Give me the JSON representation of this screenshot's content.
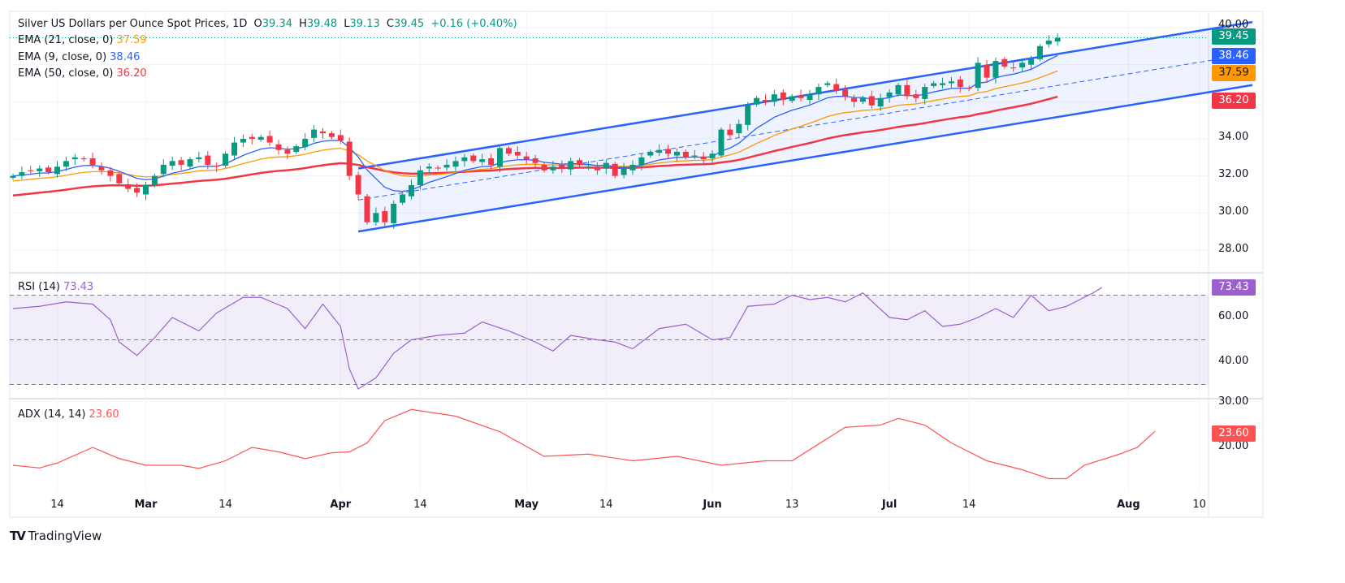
{
  "header": {
    "title": "Silver US Dollars per Ounce Spot Prices, 1D",
    "o_label": "O",
    "o": "39.34",
    "h_label": "H",
    "h": "39.48",
    "l_label": "L",
    "l": "39.13",
    "c_label": "C",
    "c": "39.45",
    "change": "+0.16 (+0.40%)"
  },
  "legends": {
    "ema21": {
      "label": "EMA (21, close, 0)",
      "value": "37.59"
    },
    "ema9": {
      "label": "EMA (9, close, 0)",
      "value": "38.46"
    },
    "ema50": {
      "label": "EMA (50, close, 0)",
      "value": "36.20"
    },
    "rsi": {
      "label": "RSI (14)",
      "value": "73.43"
    },
    "adx": {
      "label": "ADX (14, 14)",
      "value": "23.60"
    }
  },
  "colors": {
    "up": "#089981",
    "down": "#f23645",
    "ema9": "#2962ff",
    "ema21": "#ff9800",
    "ema50": "#f23645",
    "rsi": "#9c5fd0",
    "adx": "#ff5252",
    "channel": "#2962ff"
  },
  "branding": "TradingView",
  "chart_data": [
    {
      "type": "candlestick",
      "title": "Silver US Dollars per Ounce Spot Prices, 1D",
      "ylim": [
        27,
        40.6
      ],
      "yticks": [
        "40.00",
        "34.00",
        "32.00",
        "30.00",
        "28.00"
      ],
      "last_price_tags": [
        "39.45",
        "38.46",
        "37.59",
        "36.20"
      ],
      "closes": [
        32.0,
        32.2,
        32.3,
        32.4,
        32.2,
        32.5,
        32.8,
        33.0,
        32.9,
        32.6,
        32.3,
        32.0,
        31.6,
        31.3,
        31.1,
        31.5,
        32.0,
        32.6,
        32.8,
        32.6,
        32.9,
        33.0,
        32.6,
        32.5,
        33.2,
        33.8,
        34.0,
        34.0,
        34.1,
        33.8,
        33.4,
        33.2,
        33.6,
        34.0,
        34.5,
        34.3,
        34.1,
        33.9,
        32.0,
        31.0,
        29.5,
        30.0,
        29.5,
        30.5,
        31.0,
        31.5,
        32.3,
        32.5,
        32.4,
        32.6,
        32.8,
        33.0,
        32.8,
        32.9,
        32.6,
        33.5,
        33.2,
        33.1,
        32.9,
        32.7,
        32.3,
        32.5,
        32.4,
        32.8,
        32.6,
        32.5,
        32.3,
        32.7,
        32.0,
        32.4,
        32.6,
        33.0,
        33.3,
        33.4,
        33.2,
        33.3,
        33.0,
        33.1,
        32.9,
        33.2,
        34.5,
        34.2,
        34.8,
        35.8,
        36.2,
        36.0,
        36.4,
        36.1,
        36.3,
        36.2,
        36.4,
        36.8,
        37.0,
        36.6,
        36.3,
        36.0,
        36.2,
        35.8,
        36.2,
        36.5,
        36.9,
        36.3,
        36.2,
        36.8,
        37.0,
        37.0,
        37.1,
        36.8,
        36.7,
        38.1,
        37.3,
        38.2,
        37.9,
        37.8,
        38.1,
        38.3,
        39.0,
        39.3,
        39.45
      ],
      "channel": {
        "start_bar": 39,
        "end_bar": 140,
        "upper": [
          32.4,
          40.3
        ],
        "lower": [
          29.0,
          36.9
        ]
      }
    },
    {
      "type": "line",
      "title": "RSI (14)",
      "ylim": [
        25,
        78
      ],
      "yticks": [
        "60.00",
        "40.00"
      ],
      "bands": [
        30,
        50,
        70
      ],
      "points": [
        [
          0,
          64
        ],
        [
          3,
          65
        ],
        [
          6,
          67
        ],
        [
          9,
          66
        ],
        [
          11,
          59
        ],
        [
          12,
          49
        ],
        [
          14,
          43
        ],
        [
          16,
          51
        ],
        [
          18,
          60
        ],
        [
          21,
          54
        ],
        [
          23,
          62
        ],
        [
          26,
          69
        ],
        [
          28,
          69
        ],
        [
          31,
          64
        ],
        [
          33,
          55
        ],
        [
          35,
          66
        ],
        [
          37,
          56
        ],
        [
          38,
          37
        ],
        [
          39,
          28
        ],
        [
          41,
          33
        ],
        [
          43,
          44
        ],
        [
          45,
          50
        ],
        [
          48,
          52
        ],
        [
          51,
          53
        ],
        [
          53,
          58
        ],
        [
          56,
          54
        ],
        [
          59,
          49
        ],
        [
          61,
          45
        ],
        [
          63,
          52
        ],
        [
          66,
          50
        ],
        [
          68,
          49
        ],
        [
          70,
          46
        ],
        [
          73,
          55
        ],
        [
          76,
          57
        ],
        [
          79,
          50
        ],
        [
          81,
          51
        ],
        [
          83,
          65
        ],
        [
          86,
          66
        ],
        [
          88,
          70
        ],
        [
          90,
          68
        ],
        [
          92,
          69
        ],
        [
          94,
          67
        ],
        [
          96,
          71
        ],
        [
          99,
          60
        ],
        [
          101,
          59
        ],
        [
          103,
          63
        ],
        [
          105,
          56
        ],
        [
          107,
          57
        ],
        [
          109,
          60
        ],
        [
          111,
          64
        ],
        [
          113,
          60
        ],
        [
          115,
          70
        ],
        [
          117,
          63
        ],
        [
          119,
          65
        ],
        [
          120,
          67
        ],
        [
          122,
          71
        ],
        [
          123,
          73.43
        ]
      ]
    },
    {
      "type": "line",
      "title": "ADX (14, 14)",
      "ylim": [
        9,
        31
      ],
      "yticks": [
        "30.00",
        "20.00"
      ],
      "points": [
        [
          0,
          16
        ],
        [
          3,
          15.4
        ],
        [
          5,
          16.5
        ],
        [
          9,
          20
        ],
        [
          12,
          17.5
        ],
        [
          15,
          16
        ],
        [
          19,
          16
        ],
        [
          21,
          15.3
        ],
        [
          24,
          17
        ],
        [
          27,
          20
        ],
        [
          30,
          19
        ],
        [
          33,
          17.5
        ],
        [
          36,
          18.8
        ],
        [
          38,
          19
        ],
        [
          40,
          21
        ],
        [
          42,
          26
        ],
        [
          45,
          28.5
        ],
        [
          50,
          27
        ],
        [
          55,
          23.5
        ],
        [
          60,
          18
        ],
        [
          65,
          18.5
        ],
        [
          70,
          17
        ],
        [
          75,
          18
        ],
        [
          80,
          16
        ],
        [
          85,
          17
        ],
        [
          88,
          17
        ],
        [
          92,
          22
        ],
        [
          94,
          24.5
        ],
        [
          98,
          25
        ],
        [
          100,
          26.5
        ],
        [
          103,
          25
        ],
        [
          106,
          21
        ],
        [
          110,
          17
        ],
        [
          114,
          15
        ],
        [
          117,
          13
        ],
        [
          119,
          13
        ],
        [
          121,
          16
        ],
        [
          125,
          18.5
        ],
        [
          127,
          20
        ],
        [
          129,
          23.6
        ]
      ]
    }
  ],
  "time_axis": [
    {
      "label": "14",
      "bar": 5,
      "bold": false
    },
    {
      "label": "Mar",
      "bar": 15,
      "bold": true
    },
    {
      "label": "14",
      "bar": 24,
      "bold": false
    },
    {
      "label": "Apr",
      "bar": 37,
      "bold": true
    },
    {
      "label": "14",
      "bar": 46,
      "bold": false
    },
    {
      "label": "May",
      "bar": 58,
      "bold": true
    },
    {
      "label": "14",
      "bar": 67,
      "bold": false
    },
    {
      "label": "Jun",
      "bar": 79,
      "bold": true
    },
    {
      "label": "13",
      "bar": 88,
      "bold": false
    },
    {
      "label": "Jul",
      "bar": 99,
      "bold": true
    },
    {
      "label": "14",
      "bar": 108,
      "bold": false
    },
    {
      "label": "Aug",
      "bar": 126,
      "bold": true
    },
    {
      "label": "10",
      "bar": 134,
      "bold": false
    }
  ]
}
